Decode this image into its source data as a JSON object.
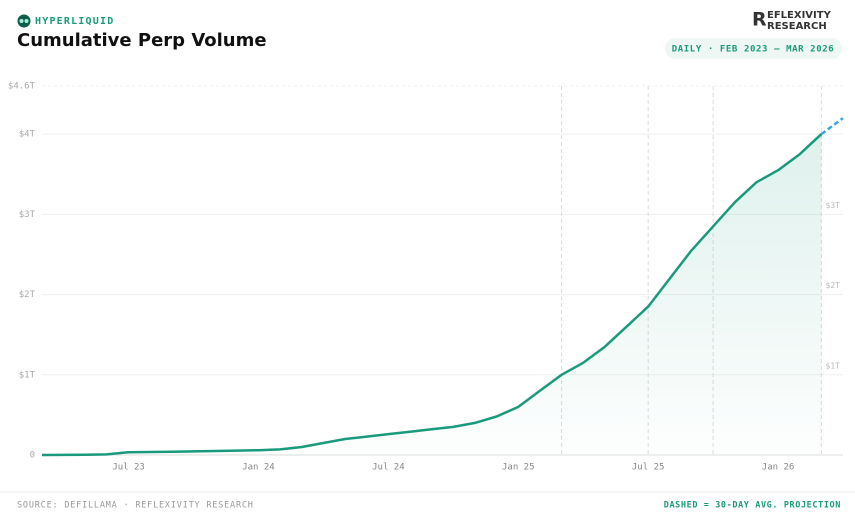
{
  "brand": "HYPERLIQUID",
  "publisher": {
    "line1": "EFLEXIVITY",
    "line2": "RESEARCH",
    "initial": "R"
  },
  "badge": "DAILY · FEB 2023 – MAR 2026",
  "footer": {
    "source": "SOURCE: DEFILLAMA · REFLEXIVITY RESEARCH",
    "note": "DASHED = 30-DAY AVG. PROJECTION"
  },
  "chart_data": {
    "type": "line",
    "title": "Cumulative Perp Volume",
    "x": [
      "2023-03",
      "2023-04",
      "2023-05",
      "2023-06",
      "2023-07",
      "2023-08",
      "2023-09",
      "2023-10",
      "2023-11",
      "2023-12",
      "2024-01",
      "2024-02",
      "2024-03",
      "2024-04",
      "2024-05",
      "2024-06",
      "2024-07",
      "2024-08",
      "2024-09",
      "2024-10",
      "2024-11",
      "2024-12",
      "2025-01",
      "2025-02",
      "2025-03",
      "2025-04",
      "2025-05",
      "2025-06",
      "2025-07",
      "2025-08",
      "2025-09",
      "2025-10",
      "2025-11",
      "2025-12",
      "2026-01",
      "2026-02",
      "2026-03",
      "2026-04"
    ],
    "series": [
      {
        "name": "Cumulative volume",
        "color": "#1a9a7c",
        "dashed": false,
        "fill": true,
        "values": [
          0,
          0.001,
          0.003,
          0.008,
          0.035,
          0.038,
          0.04,
          0.045,
          0.05,
          0.055,
          0.06,
          0.07,
          0.1,
          0.15,
          0.2,
          0.23,
          0.26,
          0.29,
          0.32,
          0.35,
          0.4,
          0.48,
          0.6,
          0.8,
          1.0,
          1.15,
          1.35,
          1.6,
          1.85,
          2.2,
          2.55,
          2.85,
          3.15,
          3.4,
          3.55,
          3.75,
          4.0,
          null
        ]
      },
      {
        "name": "30-day avg. projection",
        "color": "#3aa6e0",
        "dashed": true,
        "fill": false,
        "values": [
          null,
          null,
          null,
          null,
          null,
          null,
          null,
          null,
          null,
          null,
          null,
          null,
          null,
          null,
          null,
          null,
          null,
          null,
          null,
          null,
          null,
          null,
          null,
          null,
          null,
          null,
          null,
          null,
          null,
          null,
          null,
          null,
          null,
          null,
          null,
          null,
          4.0,
          4.2
        ]
      }
    ],
    "xlim": [
      "2023-03",
      "2026-04"
    ],
    "xticks": [
      {
        "value": "2023-07",
        "label": "Jul 23"
      },
      {
        "value": "2024-01",
        "label": "Jan 24"
      },
      {
        "value": "2024-07",
        "label": "Jul 24"
      },
      {
        "value": "2025-01",
        "label": "Jan 25"
      },
      {
        "value": "2025-07",
        "label": "Jul 25"
      },
      {
        "value": "2026-01",
        "label": "Jan 26"
      }
    ],
    "ylim": [
      0,
      4.6
    ],
    "yticks": [
      0,
      {
        "value": 1,
        "label": "$1T"
      },
      {
        "value": 2,
        "label": "$2T"
      },
      {
        "value": 3,
        "label": "$3T"
      },
      {
        "value": 4,
        "label": "$4T"
      },
      {
        "value": 4.6,
        "label": "$4.6T"
      }
    ],
    "event_lines": [
      "2025-03",
      "2025-07",
      "2025-10",
      "2026-03"
    ],
    "grid": true
  }
}
